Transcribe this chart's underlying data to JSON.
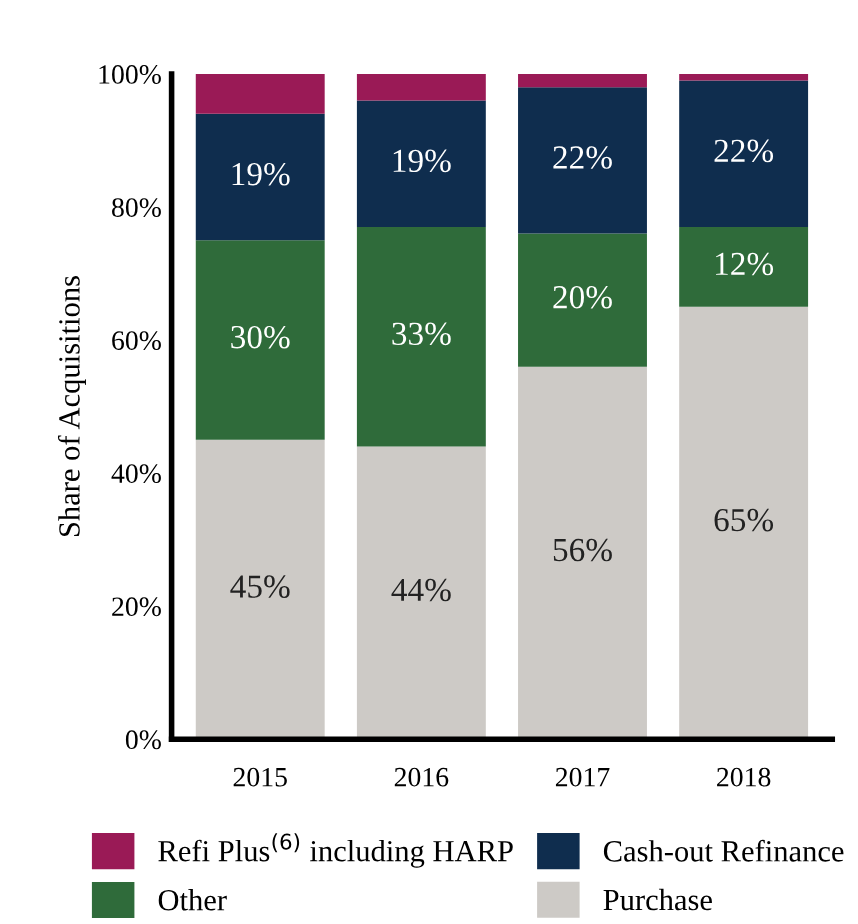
{
  "chart_data": {
    "type": "bar",
    "stacked": true,
    "ylabel": "Share of Acquisitions",
    "categories": [
      "2015",
      "2016",
      "2017",
      "2018"
    ],
    "series": [
      {
        "name": "Purchase",
        "color": "#cdcac6",
        "values": [
          45,
          44,
          56,
          65
        ],
        "value_labels": [
          "45%",
          "44%",
          "56%",
          "65%"
        ]
      },
      {
        "name": "Other",
        "color": "#2f6b3a",
        "values": [
          30,
          33,
          20,
          12
        ],
        "value_labels": [
          "30%",
          "33%",
          "20%",
          "12%"
        ]
      },
      {
        "name": "Cash-out Refinance",
        "color": "#0f2d4e",
        "values": [
          19,
          19,
          22,
          22
        ],
        "value_labels": [
          "19%",
          "19%",
          "22%",
          "22%"
        ]
      },
      {
        "name": "Refi Plus$^{(6)}$ including HARP",
        "color": "#9a1a56",
        "values": [
          6,
          4,
          2,
          1
        ]
      }
    ],
    "ylim": [
      0,
      100
    ],
    "yticks": [
      {
        "value": 0,
        "label": "0%"
      },
      {
        "value": 20,
        "label": "20%"
      },
      {
        "value": 40,
        "label": "40%"
      },
      {
        "value": 60,
        "label": "60%"
      },
      {
        "value": 80,
        "label": "80%"
      },
      {
        "value": 100,
        "label": "100%"
      }
    ],
    "grid": false,
    "legend": "bottom"
  }
}
